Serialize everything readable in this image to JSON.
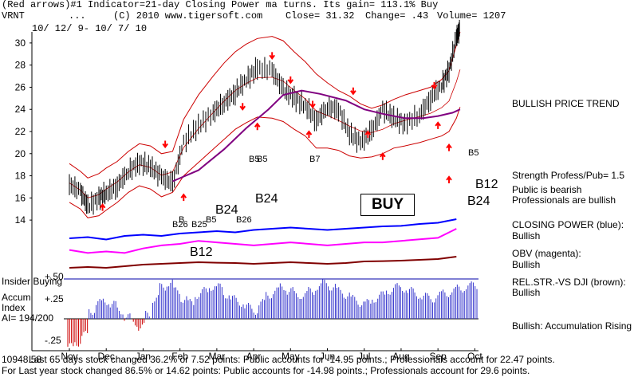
{
  "header": {
    "line1": "(Red arrows)#1 Indicator=21-day Closing Power ma turns. Its gain= 113.1% Buy",
    "symbol": "VRNT",
    "ellipsis": "...",
    "copyright": "(C) 2010 www.tigersoft.com",
    "close": "Close= 31.32",
    "change": "Change= .43",
    "volume": "Volume= 1207",
    "date_range": "10/ 12/ 9- 10/ 7/ 10"
  },
  "right_panel": {
    "trend": "BULLISH PRICE TREND",
    "strength": "Strength Profess/Pub= 1.5",
    "public": "Public is bearish",
    "professionals": "Professionals are bullish",
    "closing_power_label": "CLOSING POWER (blue):",
    "closing_power_value": "Bullish",
    "obv_label": "OBV (magenta):",
    "obv_value": "Bullish",
    "relstr_label": "REL.STR.-VS DJI (brown):",
    "relstr_value": "Bullish",
    "accum_rising": "Bullish: Accumulation Rising"
  },
  "signals": {
    "b5_a": "B5",
    "b5_b": "B5",
    "b7": "B7",
    "b5_right": "B5",
    "b12_right": "B12",
    "b24_big": "B24",
    "b24_mid": "B24",
    "b24_right": "B24",
    "b26_a": "B26",
    "b26_b": "B26",
    "b25": "B25",
    "b5_low": "B5",
    "b12_low": "B12",
    "b_small": "B"
  },
  "buy_label": "BUY",
  "insider_label": "Insider Buying",
  "accum": {
    "label1": "Accum",
    "label2": "Index",
    "label3": "AI= 194/200",
    "plus50": "+.50",
    "plus25": "+.25",
    "minus25": "-.25"
  },
  "footer": {
    "line1": "Last 65 days stock changed  36.2% or  7.52 points:  Public accounts for -14.95 points.;  Professionals account for  22.47 points.",
    "line1_prefix": "10948.58",
    "line2": "For Last year stock changed  86.5% or  14.62 points:  Public accounts for -14.98 points.;  Professionals account for  29.6 points."
  },
  "colors": {
    "price": "#000000",
    "band": "#cc0000",
    "ma": "#800080",
    "closing_power": "#0000ff",
    "obv": "#ff00ff",
    "relstr": "#800000",
    "accum": "#3333cc",
    "accum_neg": "#cc0000",
    "signal": "#ff0000"
  },
  "chart_data": {
    "type": "line",
    "title": "VRNT",
    "x_tick_labels": [
      "Nov",
      "Dec",
      "Jan",
      "Feb",
      "Mar",
      "Apr",
      "May",
      "Jun",
      "Jul",
      "Aug",
      "Sep",
      "Oct"
    ],
    "y_tick_labels": [
      "14",
      "16",
      "18",
      "20",
      "22",
      "24",
      "26",
      "28",
      "30"
    ],
    "ylim": [
      13,
      31
    ],
    "price_series": {
      "name": "Close",
      "x": [
        0,
        0.3,
        0.5,
        0.8,
        1.0,
        1.3,
        1.6,
        1.9,
        2.2,
        2.5,
        2.8,
        3.1,
        3.5,
        3.9,
        4.2,
        4.5,
        4.8,
        5.1,
        5.5,
        5.8,
        6.1,
        6.4,
        6.7,
        7.0,
        7.3,
        7.6,
        7.9,
        8.2,
        8.5,
        8.8,
        9.1,
        9.5,
        9.8,
        10.1,
        10.3,
        10.5,
        10.6
      ],
      "values": [
        17.2,
        16.6,
        15.2,
        16.0,
        16.4,
        17.1,
        18.4,
        19.2,
        18.8,
        17.9,
        17.3,
        21.0,
        22.5,
        23.7,
        24.6,
        25.5,
        26.7,
        27.7,
        27.5,
        25.8,
        25.0,
        24.3,
        23.0,
        24.2,
        24.0,
        21.8,
        21.0,
        22.0,
        24.0,
        23.2,
        22.7,
        23.5,
        25.0,
        26.2,
        27.5,
        30.5,
        31.3
      ]
    },
    "upper_band": [
      19.1,
      18.4,
      17.8,
      18.2,
      18.7,
      19.3,
      20.2,
      20.9,
      20.7,
      20.0,
      20.2,
      23.1,
      25.3,
      27.0,
      28.2,
      29.2,
      29.9,
      30.4,
      30.6,
      30.2,
      29.2,
      28.3,
      27.2,
      26.4,
      25.7,
      25.2,
      24.5,
      24.1,
      24.4,
      24.9,
      25.3,
      25.7,
      26.0,
      26.7,
      27.5,
      29.8,
      31.0
    ],
    "lower_band": [
      15.6,
      15.0,
      14.2,
      14.4,
      14.9,
      15.6,
      16.5,
      17.1,
      16.8,
      16.1,
      16.5,
      18.0,
      19.2,
      20.4,
      21.3,
      22.2,
      22.8,
      23.3,
      23.2,
      22.9,
      22.2,
      21.6,
      20.5,
      20.5,
      20.3,
      19.8,
      19.6,
      19.7,
      20.0,
      20.5,
      20.7,
      21.0,
      21.3,
      21.6,
      22.0,
      23.2,
      24.2
    ],
    "ma_x": [
      2.8,
      3.5,
      4.2,
      4.8,
      5.4,
      5.8,
      6.3,
      6.8,
      7.5,
      8.0,
      8.5,
      9.1,
      9.6,
      10.0,
      10.4,
      10.6
    ],
    "ma_values": [
      17.5,
      18.5,
      20.4,
      22.3,
      24.0,
      25.3,
      25.7,
      25.4,
      24.8,
      24.0,
      23.6,
      23.2,
      23.2,
      23.4,
      23.7,
      24.0
    ],
    "closing_power_series": [
      0.2,
      0.25,
      0.15,
      0.3,
      0.35,
      0.3,
      0.4,
      0.45,
      0.5,
      0.45,
      0.55,
      0.6,
      0.65,
      0.6,
      0.55,
      0.6,
      0.65,
      0.7,
      0.72,
      0.8,
      0.85,
      1.0
    ],
    "obv_series": [
      0.3,
      0.2,
      0.25,
      0.2,
      0.35,
      0.45,
      0.5,
      0.6,
      0.55,
      0.5,
      0.45,
      0.5,
      0.55,
      0.5,
      0.45,
      0.5,
      0.55,
      0.55,
      0.6,
      0.65,
      0.7,
      1.0
    ],
    "relstr_series": [
      0.3,
      0.35,
      0.3,
      0.4,
      0.5,
      0.55,
      0.6,
      0.65,
      0.62,
      0.6,
      0.55,
      0.6,
      0.65,
      0.6,
      0.55,
      0.6,
      0.7,
      0.72,
      0.75,
      0.8,
      0.85,
      1.0
    ],
    "accum_index_series": [
      -0.35,
      -0.3,
      -0.2,
      0.1,
      0.2,
      0.22,
      0.18,
      0.1,
      0.02,
      -0.05,
      -0.1,
      0.05,
      0.25,
      0.4,
      0.45,
      0.35,
      0.25,
      0.2,
      0.3,
      0.35,
      0.4,
      0.4,
      0.3,
      0.25,
      0.2,
      0.15,
      0.1,
      0.2,
      0.3,
      0.35,
      0.4,
      0.35,
      0.3,
      0.3,
      0.35,
      0.4,
      0.45,
      0.4,
      0.35,
      0.3,
      0.25,
      0.2,
      0.2,
      0.25,
      0.3,
      0.35,
      0.4,
      0.38,
      0.35,
      0.3,
      0.28,
      0.25,
      0.3,
      0.32,
      0.35,
      0.38,
      0.4,
      0.42
    ],
    "accum_ylim": [
      -0.4,
      0.55
    ]
  }
}
